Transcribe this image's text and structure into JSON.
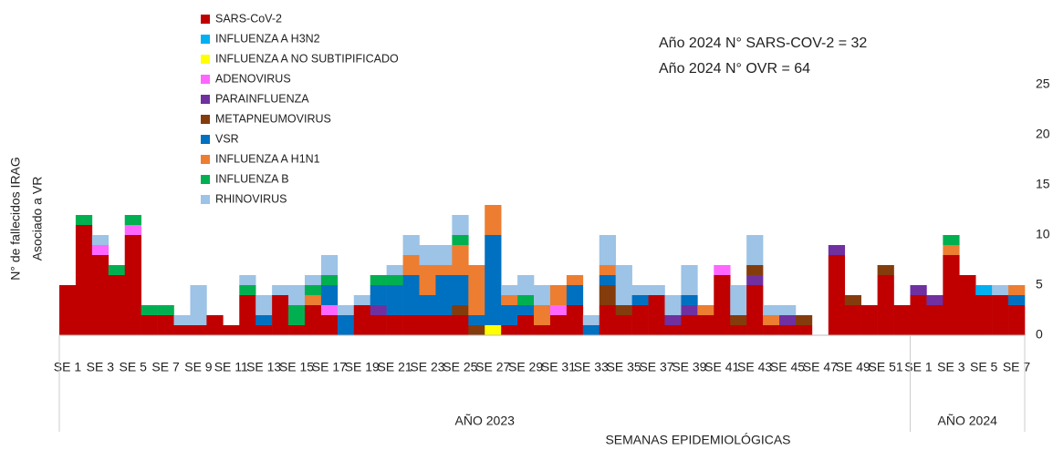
{
  "chart_data": {
    "type": "stacked_bar",
    "ylabel": [
      "N° de fallecidos IRAG",
      "Asociado a VR"
    ],
    "xlabel": "SEMANAS EPIDEMIOLÓGICAS",
    "annotations": [
      "Año 2024 N° SARS-COV-2 = 32",
      "Año 2024 N° OVR = 64"
    ],
    "groups": [
      {
        "label": "AÑO 2023",
        "count": 52
      },
      {
        "label": "AÑO 2024",
        "count": 7
      }
    ],
    "categories": [
      "SE 1",
      null,
      "SE 3",
      null,
      "SE 5",
      null,
      "SE 7",
      null,
      "SE 9",
      null,
      "SE 11",
      null,
      "SE 13",
      null,
      "SE 15",
      null,
      "SE 17",
      null,
      "SE 19",
      null,
      "SE 21",
      null,
      "SE 23",
      null,
      "SE 25",
      null,
      "SE 27",
      null,
      "SE 29",
      null,
      "SE 31",
      null,
      "SE 33",
      null,
      "SE 35",
      null,
      "SE 37",
      null,
      "SE 39",
      null,
      "SE 41",
      null,
      "SE 43",
      null,
      "SE 45",
      null,
      "SE 47",
      null,
      "SE 49",
      null,
      "SE 51",
      null,
      "SE 1",
      null,
      "SE 3",
      null,
      "SE 5",
      null,
      "SE 7"
    ],
    "series": [
      {
        "name": "SARS-CoV-2",
        "color": "#c00000",
        "values": [
          5,
          11,
          8,
          6,
          10,
          2,
          2,
          1,
          1,
          2,
          1,
          4,
          1,
          4,
          1,
          3,
          2,
          0,
          3,
          2,
          2,
          2,
          2,
          2,
          2,
          0,
          0,
          1,
          2,
          1,
          2,
          3,
          0,
          3,
          2,
          3,
          4,
          1,
          2,
          2,
          6,
          1,
          5,
          1,
          1,
          1,
          0,
          8,
          3,
          3,
          6,
          3,
          4,
          3,
          8,
          6,
          4,
          4,
          3
        ]
      },
      {
        "name": "INFLUENZA A H3N2",
        "color": "#00b0f0",
        "values": [
          0,
          0,
          0,
          0,
          0,
          0,
          0,
          0,
          0,
          0,
          0,
          0,
          0,
          0,
          0,
          0,
          0,
          0,
          0,
          0,
          0,
          0,
          0,
          0,
          0,
          0,
          0,
          0,
          0,
          0,
          0,
          0,
          0,
          0,
          0,
          0,
          0,
          0,
          0,
          0,
          0,
          0,
          0,
          0,
          0,
          0,
          0,
          0,
          0,
          0,
          0,
          0,
          0,
          0,
          0,
          0,
          1,
          0,
          0
        ]
      },
      {
        "name": "INFLUENZA A NO SUBTIPIFICADO",
        "color": "#ffff00",
        "values": [
          0,
          0,
          0,
          0,
          0,
          0,
          0,
          0,
          0,
          0,
          0,
          0,
          0,
          0,
          0,
          0,
          0,
          0,
          0,
          0,
          0,
          0,
          0,
          0,
          0,
          0,
          1,
          0,
          0,
          0,
          0,
          0,
          0,
          0,
          0,
          0,
          0,
          0,
          0,
          0,
          0,
          0,
          0,
          0,
          0,
          0,
          0,
          0,
          0,
          0,
          0,
          0,
          0,
          0,
          0,
          0,
          0,
          0,
          0
        ]
      },
      {
        "name": "ADENOVIRUS",
        "color": "#ff66ff",
        "values": [
          0,
          0,
          1,
          0,
          1,
          0,
          0,
          0,
          0,
          0,
          0,
          0,
          0,
          0,
          0,
          0,
          1,
          0,
          0,
          0,
          0,
          0,
          0,
          0,
          0,
          0,
          0,
          0,
          0,
          0,
          1,
          0,
          0,
          0,
          0,
          0,
          0,
          0,
          0,
          0,
          1,
          0,
          0,
          0,
          0,
          0,
          0,
          0,
          0,
          0,
          0,
          0,
          0,
          0,
          0,
          0,
          0,
          0,
          0
        ]
      },
      {
        "name": "PARAINFLUENZA",
        "color": "#7030a0",
        "values": [
          0,
          0,
          0,
          0,
          0,
          0,
          0,
          0,
          0,
          0,
          0,
          0,
          0,
          0,
          0,
          0,
          0,
          0,
          0,
          1,
          0,
          0,
          0,
          0,
          0,
          0,
          0,
          0,
          0,
          0,
          0,
          0,
          0,
          0,
          0,
          0,
          0,
          1,
          1,
          0,
          0,
          0,
          1,
          0,
          1,
          0,
          0,
          1,
          0,
          0,
          0,
          0,
          1,
          1,
          0,
          0,
          0,
          0,
          0
        ]
      },
      {
        "name": "METAPNEUMOVIRUS",
        "color": "#843c0c",
        "values": [
          0,
          0,
          0,
          0,
          0,
          0,
          0,
          0,
          0,
          0,
          0,
          0,
          0,
          0,
          0,
          0,
          0,
          0,
          0,
          0,
          0,
          0,
          0,
          0,
          1,
          1,
          0,
          0,
          0,
          0,
          0,
          0,
          0,
          2,
          1,
          0,
          0,
          0,
          0,
          0,
          0,
          1,
          1,
          0,
          0,
          1,
          0,
          0,
          1,
          0,
          1,
          0,
          0,
          0,
          0,
          0,
          0,
          0,
          0
        ]
      },
      {
        "name": "VSR",
        "color": "#0070c0",
        "values": [
          0,
          0,
          0,
          0,
          0,
          0,
          0,
          0,
          0,
          0,
          0,
          0,
          1,
          0,
          0,
          0,
          2,
          2,
          0,
          2,
          3,
          4,
          2,
          4,
          3,
          1,
          9,
          2,
          1,
          0,
          0,
          2,
          1,
          1,
          0,
          1,
          0,
          0,
          1,
          0,
          0,
          0,
          0,
          0,
          0,
          0,
          0,
          0,
          0,
          0,
          0,
          0,
          0,
          0,
          0,
          0,
          0,
          0,
          1
        ]
      },
      {
        "name": "INFLUENZA A H1N1",
        "color": "#ed7d31",
        "values": [
          0,
          0,
          0,
          0,
          0,
          0,
          0,
          0,
          0,
          0,
          0,
          0,
          0,
          0,
          0,
          1,
          0,
          0,
          0,
          0,
          0,
          2,
          3,
          1,
          3,
          5,
          3,
          1,
          0,
          2,
          2,
          1,
          0,
          1,
          0,
          0,
          0,
          0,
          0,
          1,
          0,
          0,
          0,
          1,
          0,
          0,
          0,
          0,
          0,
          0,
          0,
          0,
          0,
          0,
          1,
          0,
          0,
          0,
          1
        ]
      },
      {
        "name": "INFLUENZA B",
        "color": "#00b050",
        "values": [
          0,
          1,
          0,
          1,
          1,
          1,
          1,
          0,
          0,
          0,
          0,
          1,
          0,
          0,
          2,
          1,
          1,
          0,
          0,
          1,
          1,
          0,
          0,
          0,
          1,
          0,
          0,
          0,
          1,
          0,
          0,
          0,
          0,
          0,
          0,
          0,
          0,
          0,
          0,
          0,
          0,
          0,
          0,
          0,
          0,
          0,
          0,
          0,
          0,
          0,
          0,
          0,
          0,
          0,
          1,
          0,
          0,
          0,
          0
        ]
      },
      {
        "name": "RHINOVIRUS",
        "color": "#9dc3e6",
        "values": [
          0,
          0,
          1,
          0,
          0,
          0,
          0,
          1,
          4,
          0,
          0,
          1,
          2,
          1,
          2,
          1,
          2,
          1,
          1,
          0,
          1,
          2,
          2,
          2,
          2,
          0,
          0,
          1,
          2,
          2,
          0,
          0,
          1,
          3,
          4,
          1,
          1,
          2,
          3,
          0,
          0,
          3,
          3,
          1,
          1,
          0,
          0,
          0,
          0,
          0,
          0,
          0,
          0,
          0,
          0,
          0,
          0,
          1,
          0
        ]
      }
    ],
    "ylim": [
      0,
      25
    ],
    "yticks": [
      0,
      5,
      10,
      15,
      20,
      25
    ],
    "legend": "top-left",
    "grid": false
  }
}
